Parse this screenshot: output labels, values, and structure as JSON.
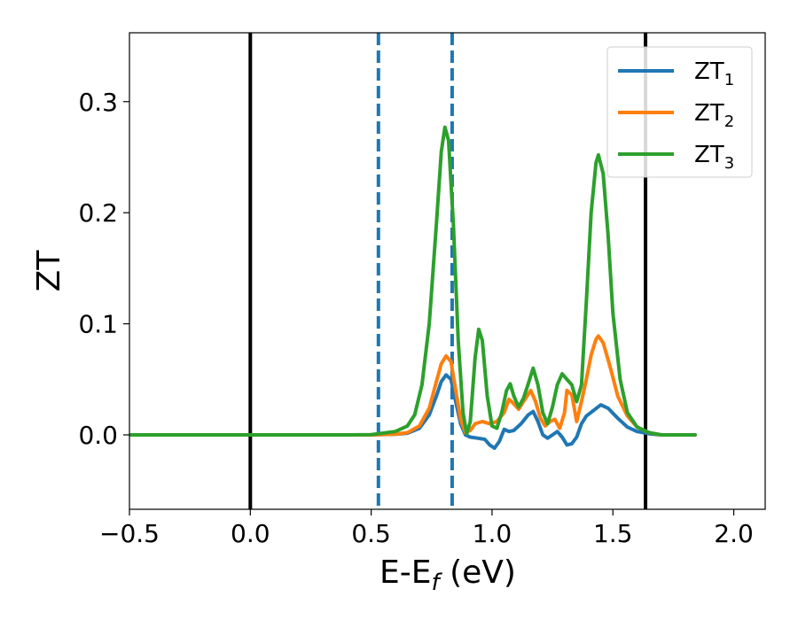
{
  "chart_data": {
    "type": "line",
    "title": "",
    "xlabel": "E-E",
    "xlabel_sub": "f",
    "xlabel_unit": " (eV)",
    "ylabel": "ZT",
    "xlim": [
      -0.5,
      2.13
    ],
    "ylim": [
      -0.067,
      0.362
    ],
    "xticks": [
      -0.5,
      0.0,
      0.5,
      1.0,
      1.5,
      2.0
    ],
    "xtick_labels": [
      "−0.5",
      "0.0",
      "0.5",
      "1.0",
      "1.5",
      "2.0"
    ],
    "yticks": [
      0.0,
      0.1,
      0.2,
      0.3
    ],
    "ytick_labels": [
      "0.0",
      "0.1",
      "0.2",
      "0.3"
    ],
    "grid": false,
    "legend_position": "top-right",
    "vlines": [
      {
        "x": 0.0,
        "style": "solid",
        "color": "#000000"
      },
      {
        "x": 1.635,
        "style": "solid",
        "color": "#000000"
      },
      {
        "x": 0.53,
        "style": "dashed",
        "color": "#1f77b4"
      },
      {
        "x": 0.835,
        "style": "dashed",
        "color": "#1f77b4"
      }
    ],
    "series": [
      {
        "name": "ZT",
        "name_sub": "1",
        "color": "#1f77b4",
        "points": [
          [
            -0.5,
            0
          ],
          [
            0.4,
            0
          ],
          [
            0.5,
            0
          ],
          [
            0.6,
            0.0005
          ],
          [
            0.65,
            0.0015
          ],
          [
            0.7,
            0.006
          ],
          [
            0.74,
            0.018
          ],
          [
            0.77,
            0.035
          ],
          [
            0.79,
            0.048
          ],
          [
            0.81,
            0.054
          ],
          [
            0.83,
            0.05
          ],
          [
            0.85,
            0.03
          ],
          [
            0.87,
            0.01
          ],
          [
            0.89,
            0.0
          ],
          [
            0.91,
            -0.002
          ],
          [
            0.94,
            -0.003
          ],
          [
            0.97,
            -0.004
          ],
          [
            0.99,
            -0.009
          ],
          [
            1.01,
            -0.012
          ],
          [
            1.03,
            -0.006
          ],
          [
            1.05,
            0.005
          ],
          [
            1.07,
            0.003
          ],
          [
            1.09,
            0.004
          ],
          [
            1.12,
            0.01
          ],
          [
            1.15,
            0.018
          ],
          [
            1.17,
            0.021
          ],
          [
            1.19,
            0.012
          ],
          [
            1.21,
            0.0
          ],
          [
            1.23,
            -0.003
          ],
          [
            1.25,
            0.0
          ],
          [
            1.27,
            0.003
          ],
          [
            1.29,
            -0.002
          ],
          [
            1.31,
            -0.009
          ],
          [
            1.33,
            -0.008
          ],
          [
            1.35,
            -0.002
          ],
          [
            1.37,
            0.01
          ],
          [
            1.39,
            0.017
          ],
          [
            1.42,
            0.022
          ],
          [
            1.45,
            0.027
          ],
          [
            1.48,
            0.024
          ],
          [
            1.52,
            0.015
          ],
          [
            1.56,
            0.007
          ],
          [
            1.6,
            0.003
          ],
          [
            1.65,
            0.001
          ],
          [
            1.7,
            0.0
          ],
          [
            1.84,
            0.0
          ]
        ]
      },
      {
        "name": "ZT",
        "name_sub": "2",
        "color": "#ff7f0e",
        "points": [
          [
            -0.5,
            0
          ],
          [
            0.4,
            0
          ],
          [
            0.5,
            0
          ],
          [
            0.6,
            0.0007
          ],
          [
            0.65,
            0.002
          ],
          [
            0.7,
            0.008
          ],
          [
            0.74,
            0.024
          ],
          [
            0.77,
            0.048
          ],
          [
            0.79,
            0.064
          ],
          [
            0.81,
            0.071
          ],
          [
            0.83,
            0.066
          ],
          [
            0.85,
            0.04
          ],
          [
            0.87,
            0.014
          ],
          [
            0.89,
            0.002
          ],
          [
            0.91,
            0.004
          ],
          [
            0.93,
            0.01
          ],
          [
            0.96,
            0.012
          ],
          [
            0.99,
            0.01
          ],
          [
            1.02,
            0.012
          ],
          [
            1.05,
            0.02
          ],
          [
            1.07,
            0.032
          ],
          [
            1.09,
            0.028
          ],
          [
            1.11,
            0.023
          ],
          [
            1.13,
            0.03
          ],
          [
            1.16,
            0.04
          ],
          [
            1.18,
            0.03
          ],
          [
            1.2,
            0.015
          ],
          [
            1.22,
            0.008
          ],
          [
            1.24,
            0.012
          ],
          [
            1.26,
            0.014
          ],
          [
            1.28,
            0.006
          ],
          [
            1.3,
            0.02
          ],
          [
            1.31,
            0.04
          ],
          [
            1.33,
            0.036
          ],
          [
            1.35,
            0.012
          ],
          [
            1.37,
            0.03
          ],
          [
            1.39,
            0.05
          ],
          [
            1.41,
            0.072
          ],
          [
            1.43,
            0.086
          ],
          [
            1.44,
            0.089
          ],
          [
            1.46,
            0.083
          ],
          [
            1.49,
            0.06
          ],
          [
            1.52,
            0.035
          ],
          [
            1.56,
            0.017
          ],
          [
            1.6,
            0.007
          ],
          [
            1.65,
            0.002
          ],
          [
            1.7,
            0.0
          ],
          [
            1.84,
            0.0
          ]
        ]
      },
      {
        "name": "ZT",
        "name_sub": "3",
        "color": "#2ca02c",
        "points": [
          [
            -0.5,
            0
          ],
          [
            0.4,
            0
          ],
          [
            0.5,
            0.0002
          ],
          [
            0.6,
            0.003
          ],
          [
            0.65,
            0.008
          ],
          [
            0.68,
            0.018
          ],
          [
            0.71,
            0.045
          ],
          [
            0.74,
            0.1
          ],
          [
            0.77,
            0.19
          ],
          [
            0.79,
            0.255
          ],
          [
            0.805,
            0.277
          ],
          [
            0.82,
            0.265
          ],
          [
            0.84,
            0.19
          ],
          [
            0.86,
            0.085
          ],
          [
            0.88,
            0.02
          ],
          [
            0.895,
            0.001
          ],
          [
            0.91,
            0.012
          ],
          [
            0.93,
            0.07
          ],
          [
            0.945,
            0.095
          ],
          [
            0.96,
            0.085
          ],
          [
            0.98,
            0.035
          ],
          [
            1.0,
            0.008
          ],
          [
            1.02,
            0.006
          ],
          [
            1.04,
            0.02
          ],
          [
            1.06,
            0.04
          ],
          [
            1.075,
            0.046
          ],
          [
            1.09,
            0.035
          ],
          [
            1.11,
            0.025
          ],
          [
            1.13,
            0.033
          ],
          [
            1.15,
            0.046
          ],
          [
            1.17,
            0.06
          ],
          [
            1.19,
            0.045
          ],
          [
            1.21,
            0.02
          ],
          [
            1.23,
            0.01
          ],
          [
            1.25,
            0.025
          ],
          [
            1.27,
            0.045
          ],
          [
            1.29,
            0.055
          ],
          [
            1.31,
            0.05
          ],
          [
            1.33,
            0.045
          ],
          [
            1.35,
            0.03
          ],
          [
            1.37,
            0.045
          ],
          [
            1.39,
            0.12
          ],
          [
            1.41,
            0.2
          ],
          [
            1.43,
            0.245
          ],
          [
            1.44,
            0.252
          ],
          [
            1.46,
            0.235
          ],
          [
            1.48,
            0.18
          ],
          [
            1.5,
            0.11
          ],
          [
            1.53,
            0.05
          ],
          [
            1.56,
            0.02
          ],
          [
            1.6,
            0.007
          ],
          [
            1.65,
            0.002
          ],
          [
            1.7,
            0.0
          ],
          [
            1.84,
            0.0
          ]
        ]
      }
    ]
  }
}
